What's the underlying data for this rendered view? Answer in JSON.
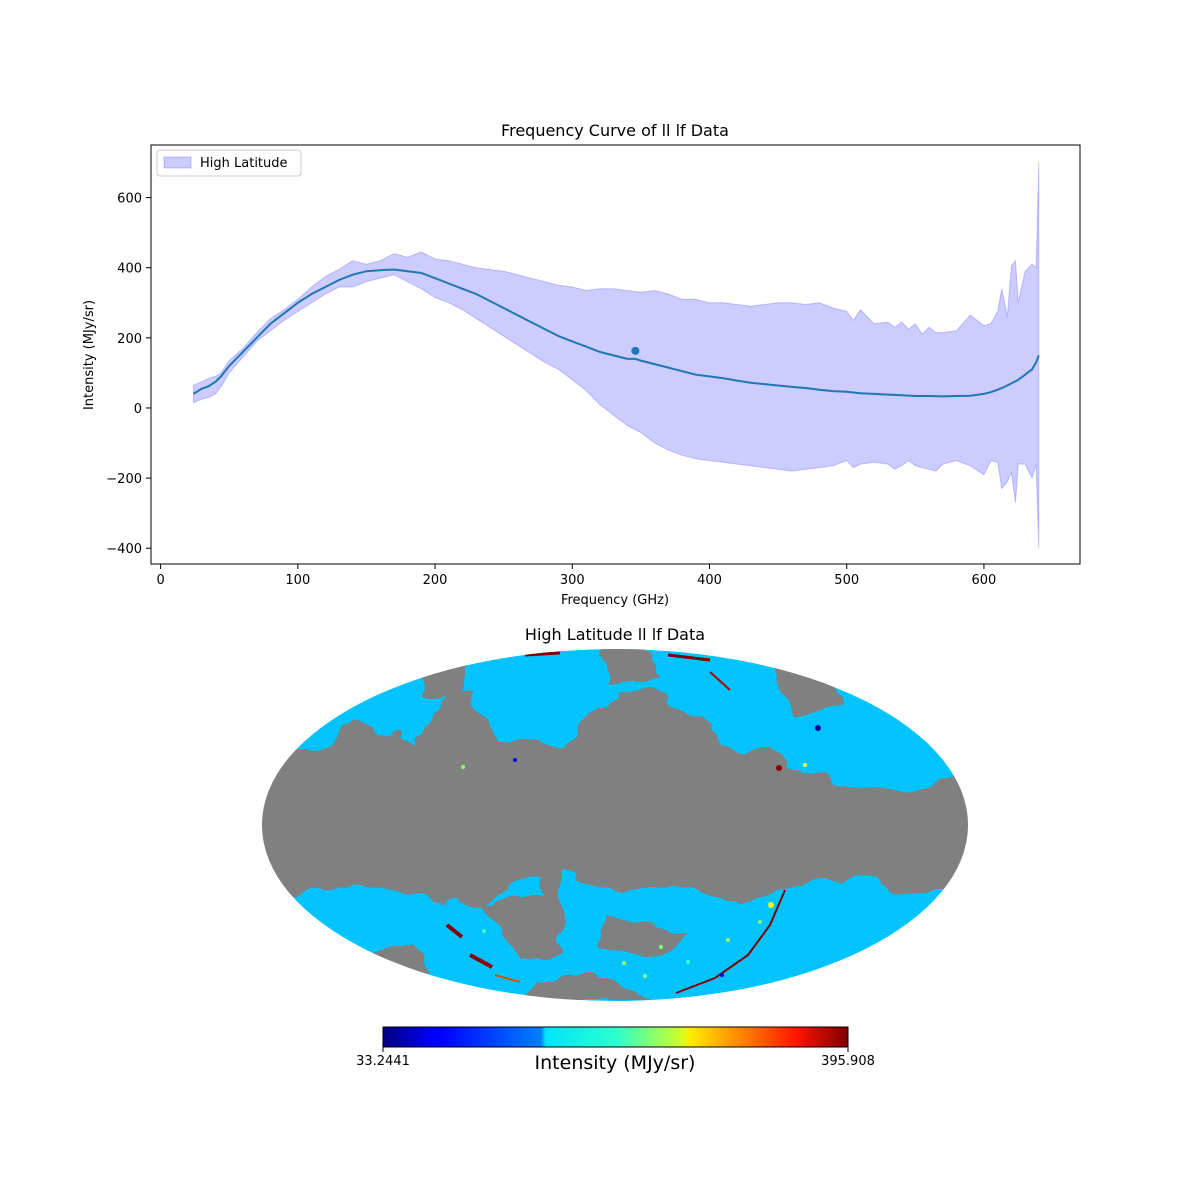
{
  "chart_data": [
    {
      "type": "area",
      "title": "Frequency Curve of ll lf Data",
      "xlabel": "Frequency (GHz)",
      "ylabel": "Intensity (MJy/sr)",
      "xlim": [
        -7,
        670
      ],
      "ylim": [
        -445,
        750
      ],
      "xticks": [
        0,
        100,
        200,
        300,
        400,
        500,
        600
      ],
      "yticks": [
        -400,
        -200,
        0,
        200,
        400,
        600
      ],
      "ytick_labels": [
        "−400",
        "−200",
        "0",
        "200",
        "400",
        "600"
      ],
      "legend": {
        "position": "upper-left",
        "entries": [
          "High Latitude"
        ]
      },
      "grid": false,
      "band": {
        "name": "High Latitude",
        "color": "#0000ff",
        "opacity": 0.2,
        "x": [
          24,
          30,
          35,
          40,
          44,
          50,
          60,
          70,
          80,
          90,
          100,
          110,
          120,
          130,
          140,
          150,
          160,
          170,
          180,
          190,
          200,
          210,
          220,
          230,
          240,
          250,
          260,
          270,
          280,
          290,
          300,
          310,
          320,
          330,
          340,
          350,
          360,
          370,
          380,
          390,
          400,
          410,
          420,
          430,
          440,
          450,
          460,
          470,
          480,
          490,
          500,
          505,
          510,
          520,
          530,
          535,
          540,
          545,
          550,
          555,
          560,
          565,
          570,
          580,
          590,
          600,
          605,
          610,
          613,
          617,
          620,
          623,
          625,
          630,
          635,
          638,
          640
        ],
        "upper": [
          65,
          75,
          85,
          90,
          100,
          135,
          170,
          215,
          255,
          280,
          310,
          345,
          375,
          395,
          420,
          410,
          420,
          440,
          430,
          445,
          425,
          420,
          410,
          400,
          395,
          390,
          380,
          370,
          360,
          350,
          345,
          335,
          340,
          340,
          335,
          330,
          335,
          325,
          310,
          310,
          300,
          300,
          295,
          290,
          295,
          300,
          300,
          295,
          300,
          285,
          275,
          250,
          280,
          240,
          245,
          230,
          245,
          225,
          240,
          210,
          230,
          215,
          215,
          220,
          265,
          235,
          240,
          275,
          340,
          260,
          405,
          420,
          300,
          390,
          410,
          400,
          700
        ],
        "lower": [
          15,
          25,
          30,
          40,
          60,
          100,
          145,
          190,
          220,
          250,
          275,
          300,
          325,
          345,
          345,
          360,
          370,
          380,
          360,
          340,
          315,
          300,
          280,
          255,
          230,
          205,
          180,
          155,
          130,
          110,
          80,
          50,
          10,
          -20,
          -50,
          -70,
          -100,
          -120,
          -135,
          -145,
          -150,
          -155,
          -160,
          -165,
          -170,
          -175,
          -180,
          -175,
          -170,
          -165,
          -150,
          -170,
          -160,
          -155,
          -160,
          -175,
          -165,
          -150,
          -165,
          -170,
          -175,
          -180,
          -160,
          -150,
          -165,
          -190,
          -150,
          -155,
          -230,
          -210,
          -185,
          -270,
          -160,
          -160,
          -200,
          -160,
          -400
        ]
      },
      "series": [
        {
          "type": "line",
          "color": "#1f77b4",
          "x": [
            24,
            30,
            35,
            40,
            44,
            50,
            60,
            70,
            80,
            90,
            100,
            110,
            120,
            130,
            140,
            150,
            160,
            170,
            180,
            190,
            200,
            210,
            220,
            230,
            240,
            250,
            260,
            270,
            280,
            290,
            300,
            310,
            320,
            330,
            340,
            346,
            350,
            360,
            370,
            380,
            390,
            400,
            410,
            420,
            430,
            440,
            450,
            460,
            470,
            480,
            490,
            500,
            510,
            520,
            530,
            540,
            550,
            560,
            570,
            580,
            590,
            600,
            605,
            610,
            615,
            620,
            625,
            630,
            635,
            638,
            640
          ],
          "values": [
            40,
            55,
            62,
            75,
            90,
            120,
            160,
            200,
            240,
            270,
            300,
            325,
            345,
            365,
            380,
            390,
            393,
            395,
            390,
            385,
            370,
            355,
            340,
            325,
            305,
            285,
            265,
            245,
            225,
            205,
            190,
            175,
            160,
            150,
            140,
            140,
            135,
            125,
            115,
            105,
            95,
            90,
            85,
            78,
            72,
            68,
            64,
            60,
            57,
            52,
            48,
            46,
            42,
            40,
            38,
            36,
            34,
            34,
            33,
            34,
            35,
            40,
            45,
            52,
            60,
            70,
            80,
            95,
            110,
            130,
            150
          ]
        }
      ],
      "marker": {
        "x": 346,
        "y": 163
      }
    },
    {
      "type": "heatmap",
      "title": "High Latitude ll lf Data",
      "projection": "mollweide",
      "colormap": "jet",
      "mask_color": "#808080",
      "colorbar": {
        "label": "Intensity (MJy/sr)",
        "min": 33.2441,
        "max": 395.908,
        "min_label": "33.2441",
        "max_label": "395.908",
        "orientation": "horizontal"
      }
    }
  ]
}
